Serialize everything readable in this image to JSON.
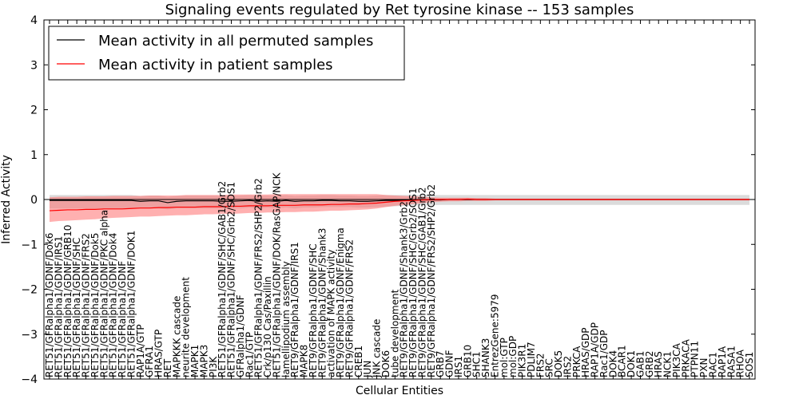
{
  "chart_data": {
    "type": "line",
    "title": "Signaling events regulated by Ret tyrosine kinase -- 153 samples",
    "xlabel": "Cellular Entities",
    "ylabel": "Inferred Activity",
    "ylim": [
      -4,
      4
    ],
    "yticks": [
      -4,
      -3,
      -2,
      -1,
      0,
      1,
      2,
      3,
      4
    ],
    "grid": false,
    "legend_position": "top-left",
    "categories": [
      "RET51/GFRalpha1/GDNF/Dok6",
      "RET51/GFRalpha1/GDNF/IRS1",
      "RET51/GFRalpha1/GDNF/GRB10",
      "RET51/GFRalpha1/GDNF/SHC",
      "RET51/GFRalpha1/GDNF/FRS2",
      "RET51/GFRalpha1/GDNF/Dok5",
      "RET51/GFRalpha1/GDNF/PKC alpha",
      "RET51/GFRalpha1/GDNF/Dok4",
      "RET51/GFRalpha1/GDNF",
      "RET51/GFRalpha1/GDNF/DOK1",
      "RAP1A/GTP",
      "GFRA1",
      "HRAS/GTP",
      "RET",
      "MAPKKK cascade",
      "neurite development",
      "MAPK1",
      "MAPK3",
      "PI3K",
      "RET51/GFRalpha1/GDNF/SHC/GAB1/Grb2",
      "RET51/GFRalpha1/GDNF/SHC/Grb2/SOS1",
      "GFRalpha1/GDNF",
      "Rac1/GTP",
      "RET51/GFRalpha1/GDNF/FRS2/SHP2/Grb2",
      "Crk/p130 Cas/Paxillin",
      "RET51/GFRalpha1/GDNF/DOK/RasGAP/NCK",
      "lamellipodium assembly",
      "RET9/GFRalpha1/GDNF/IRS1",
      "MAPK8",
      "RET9/GFRalpha1/GDNF/SHC",
      "RET9/GFRalpha1/GDNF/Shank3",
      "activation of MAPK activity",
      "RET9/GFRalpha1/GDNF/Enigma",
      "RET9/GFRalpha1/GDNF/FRS2",
      "CREB1",
      "JUN",
      "JNK cascade",
      "DOK6",
      "tube development",
      "RET9/GFRalpha1/GDNF/Shank3/Grb2",
      "RET9/GFRalpha1/GDNF/SHC/Grb2/SOS1",
      "RET9/GFRalpha1/GDNF/SHC/GAB1/Grb2",
      "RET9/GFRalpha1/GDNF/FRS2/SHP2/Grb2",
      "GRB7",
      "GDNF",
      "IRS1",
      "GRB10",
      "SHC1",
      "SHANK3",
      "EntrezGene:5979",
      "mol:GTP",
      "mol:GDP",
      "PIK3R1",
      "PDLIM7",
      "FRS2",
      "SRC",
      "DOK5",
      "IRS2",
      "PRKCA",
      "HRAS/GDP",
      "RAP1A/GDP",
      "Rac1/GDP",
      "DOK4",
      "BCAR1",
      "DOK1",
      "GAB1",
      "GRB2",
      "HRAS",
      "NCK1",
      "PIK3CA",
      "PRKACA",
      "PTPN11",
      "PXN",
      "RAC1",
      "RAP1A",
      "RASA1",
      "RHOA",
      "SOS1"
    ],
    "series": [
      {
        "name": "Mean activity in all permuted samples",
        "color": "#000000",
        "band_color": "#b0b0b0",
        "values": [
          -0.02,
          -0.02,
          -0.02,
          -0.02,
          -0.02,
          -0.02,
          -0.02,
          -0.02,
          -0.02,
          -0.02,
          -0.04,
          -0.03,
          -0.03,
          -0.07,
          -0.04,
          -0.03,
          -0.03,
          -0.03,
          -0.03,
          -0.04,
          -0.04,
          -0.03,
          -0.02,
          -0.04,
          -0.03,
          -0.04,
          -0.02,
          -0.04,
          -0.03,
          -0.03,
          -0.02,
          -0.02,
          -0.03,
          -0.03,
          -0.04,
          -0.04,
          -0.03,
          -0.02,
          -0.02,
          -0.01,
          -0.01,
          -0.01,
          -0.01,
          -0.01,
          0.0,
          0.0,
          0.0,
          0.0,
          0.0,
          0.0,
          0.0,
          0.0,
          0.0,
          0.0,
          0.0,
          0.0,
          0.0,
          0.0,
          0.0,
          0.0,
          0.0,
          0.0,
          0.0,
          0.0,
          0.0,
          0.0,
          0.0,
          0.0,
          0.0,
          0.0,
          0.0,
          0.0,
          0.0,
          0.0,
          0.0,
          0.0,
          0.0,
          0.0
        ],
        "lower": [
          -0.2,
          -0.2,
          -0.2,
          -0.2,
          -0.2,
          -0.2,
          -0.2,
          -0.2,
          -0.2,
          -0.2,
          -0.2,
          -0.2,
          -0.2,
          -0.22,
          -0.2,
          -0.2,
          -0.2,
          -0.2,
          -0.2,
          -0.2,
          -0.2,
          -0.2,
          -0.18,
          -0.2,
          -0.18,
          -0.2,
          -0.18,
          -0.2,
          -0.18,
          -0.18,
          -0.17,
          -0.17,
          -0.17,
          -0.17,
          -0.18,
          -0.18,
          -0.17,
          -0.16,
          -0.15,
          -0.14,
          -0.13,
          -0.13,
          -0.13,
          -0.12,
          -0.12,
          -0.12,
          -0.12,
          -0.12,
          -0.12,
          -0.12,
          -0.12,
          -0.12,
          -0.12,
          -0.12,
          -0.12,
          -0.12,
          -0.12,
          -0.12,
          -0.12,
          -0.12,
          -0.12,
          -0.12,
          -0.12,
          -0.12,
          -0.12,
          -0.12,
          -0.12,
          -0.12,
          -0.12,
          -0.12,
          -0.12,
          -0.12,
          -0.12,
          -0.12,
          -0.12,
          -0.12,
          -0.12,
          -0.12
        ],
        "upper": [
          0.1,
          0.1,
          0.1,
          0.1,
          0.1,
          0.1,
          0.1,
          0.1,
          0.1,
          0.1,
          0.08,
          0.09,
          0.09,
          0.06,
          0.08,
          0.09,
          0.09,
          0.09,
          0.09,
          0.08,
          0.08,
          0.09,
          0.1,
          0.08,
          0.09,
          0.08,
          0.1,
          0.08,
          0.09,
          0.09,
          0.1,
          0.1,
          0.09,
          0.09,
          0.08,
          0.08,
          0.09,
          0.1,
          0.1,
          0.1,
          0.1,
          0.1,
          0.1,
          0.1,
          0.1,
          0.1,
          0.1,
          0.1,
          0.1,
          0.1,
          0.1,
          0.1,
          0.1,
          0.1,
          0.1,
          0.1,
          0.1,
          0.1,
          0.1,
          0.1,
          0.1,
          0.1,
          0.1,
          0.1,
          0.1,
          0.1,
          0.1,
          0.1,
          0.1,
          0.1,
          0.1,
          0.1,
          0.1,
          0.1,
          0.1,
          0.1,
          0.1,
          0.1
        ]
      },
      {
        "name": "Mean activity in patient samples",
        "color": "#ff0000",
        "band_color": "#ff7070",
        "values": [
          -0.25,
          -0.24,
          -0.23,
          -0.23,
          -0.22,
          -0.22,
          -0.21,
          -0.21,
          -0.21,
          -0.2,
          -0.19,
          -0.19,
          -0.18,
          -0.18,
          -0.17,
          -0.17,
          -0.17,
          -0.16,
          -0.16,
          -0.16,
          -0.15,
          -0.15,
          -0.14,
          -0.14,
          -0.14,
          -0.13,
          -0.13,
          -0.13,
          -0.12,
          -0.12,
          -0.12,
          -0.11,
          -0.11,
          -0.1,
          -0.1,
          -0.09,
          -0.08,
          -0.06,
          -0.04,
          -0.03,
          -0.02,
          -0.01,
          0.0,
          0.0,
          0.0,
          0.0,
          0.01,
          0.0,
          0.0,
          0.0,
          0.0,
          0.0,
          0.0,
          0.0,
          0.0,
          0.0,
          0.0,
          0.0,
          0.0,
          0.0,
          0.0,
          0.0,
          0.0,
          0.0,
          0.0,
          0.0,
          0.0,
          0.0,
          0.0,
          0.0,
          0.0,
          0.0,
          0.0,
          0.0,
          0.0,
          0.0,
          0.0,
          0.0
        ],
        "lower": [
          -0.5,
          -0.48,
          -0.47,
          -0.46,
          -0.45,
          -0.44,
          -0.42,
          -0.41,
          -0.4,
          -0.39,
          -0.38,
          -0.38,
          -0.37,
          -0.36,
          -0.35,
          -0.35,
          -0.34,
          -0.33,
          -0.33,
          -0.32,
          -0.32,
          -0.31,
          -0.3,
          -0.3,
          -0.29,
          -0.29,
          -0.28,
          -0.28,
          -0.27,
          -0.27,
          -0.26,
          -0.25,
          -0.25,
          -0.24,
          -0.23,
          -0.22,
          -0.2,
          -0.17,
          -0.14,
          -0.12,
          -0.1,
          -0.08,
          -0.06,
          -0.05,
          -0.04,
          -0.04,
          -0.03,
          -0.03,
          -0.03,
          -0.02,
          -0.02,
          -0.02,
          -0.02,
          -0.02,
          -0.02,
          -0.02,
          -0.02,
          -0.02,
          -0.02,
          -0.02,
          -0.02,
          -0.02,
          -0.02,
          -0.02,
          -0.02,
          -0.02,
          -0.02,
          -0.02,
          -0.02,
          -0.02,
          -0.02,
          -0.02,
          -0.02,
          -0.02,
          -0.02,
          -0.02,
          -0.02,
          -0.02
        ],
        "upper": [
          0.05,
          0.06,
          0.06,
          0.06,
          0.07,
          0.07,
          0.07,
          0.08,
          0.08,
          0.08,
          0.08,
          0.09,
          0.09,
          0.09,
          0.09,
          0.1,
          0.1,
          0.1,
          0.1,
          0.1,
          0.11,
          0.11,
          0.11,
          0.11,
          0.11,
          0.12,
          0.12,
          0.12,
          0.12,
          0.12,
          0.12,
          0.12,
          0.12,
          0.12,
          0.12,
          0.12,
          0.12,
          0.1,
          0.09,
          0.08,
          0.07,
          0.06,
          0.05,
          0.04,
          0.04,
          0.04,
          0.04,
          0.03,
          0.03,
          0.02,
          0.02,
          0.02,
          0.02,
          0.02,
          0.02,
          0.02,
          0.02,
          0.02,
          0.02,
          0.02,
          0.02,
          0.02,
          0.02,
          0.02,
          0.02,
          0.02,
          0.02,
          0.02,
          0.02,
          0.02,
          0.02,
          0.02,
          0.02,
          0.02,
          0.02,
          0.02,
          0.02,
          0.02
        ]
      }
    ]
  }
}
